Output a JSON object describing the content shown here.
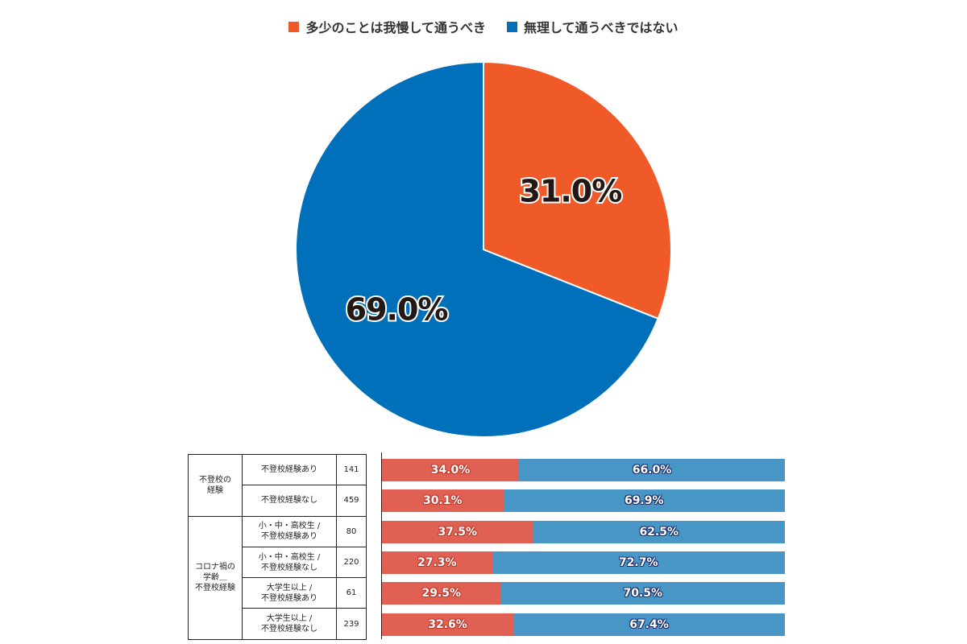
{
  "chart_data": [
    {
      "type": "pie",
      "legend": [
        {
          "label": "多少のことは我慢して通うべき",
          "color": "#f05a28"
        },
        {
          "label": "無理して通うべきではない",
          "color": "#0070bb"
        }
      ],
      "legend_placement": "top",
      "slices": [
        {
          "name": "多少のことは我慢して通うべき",
          "value": 31.0,
          "label": "31.0%",
          "color": "#f05a28"
        },
        {
          "name": "無理して通うべきではない",
          "value": 69.0,
          "label": "69.0%",
          "color": "#0070bb"
        }
      ]
    },
    {
      "type": "bar",
      "orientation": "horizontal",
      "stacked": true,
      "percent": true,
      "colors": {
        "a": "#e06153",
        "b": "#4796c6"
      },
      "groups": [
        {
          "label": "不登校の\n経験",
          "rows": [
            0,
            1
          ]
        },
        {
          "label": "コロナ禍の\n学齢＿\n不登校経験",
          "rows": [
            2,
            3,
            4,
            5
          ]
        }
      ],
      "rows": [
        {
          "category": "不登校経験あり",
          "n": "141",
          "a": 34.0,
          "a_label": "34.0%",
          "b": 66.0,
          "b_label": "66.0%"
        },
        {
          "category": "不登校経験なし",
          "n": "459",
          "a": 30.1,
          "a_label": "30.1%",
          "b": 69.9,
          "b_label": "69.9%"
        },
        {
          "category": "小・中・高校生 /\n不登校経験あり",
          "n": "80",
          "a": 37.5,
          "a_label": "37.5%",
          "b": 62.5,
          "b_label": "62.5%"
        },
        {
          "category": "小・中・高校生 /\n不登校経験なし",
          "n": "220",
          "a": 27.3,
          "a_label": "27.3%",
          "b": 72.7,
          "b_label": "72.7%"
        },
        {
          "category": "大学生以上 /\n不登校経験あり",
          "n": "61",
          "a": 29.5,
          "a_label": "29.5%",
          "b": 70.5,
          "b_label": "70.5%"
        },
        {
          "category": "大学生以上 /\n不登校経験なし",
          "n": "239",
          "a": 32.6,
          "a_label": "32.6%",
          "b": 67.4,
          "b_label": "67.4%"
        }
      ]
    }
  ]
}
